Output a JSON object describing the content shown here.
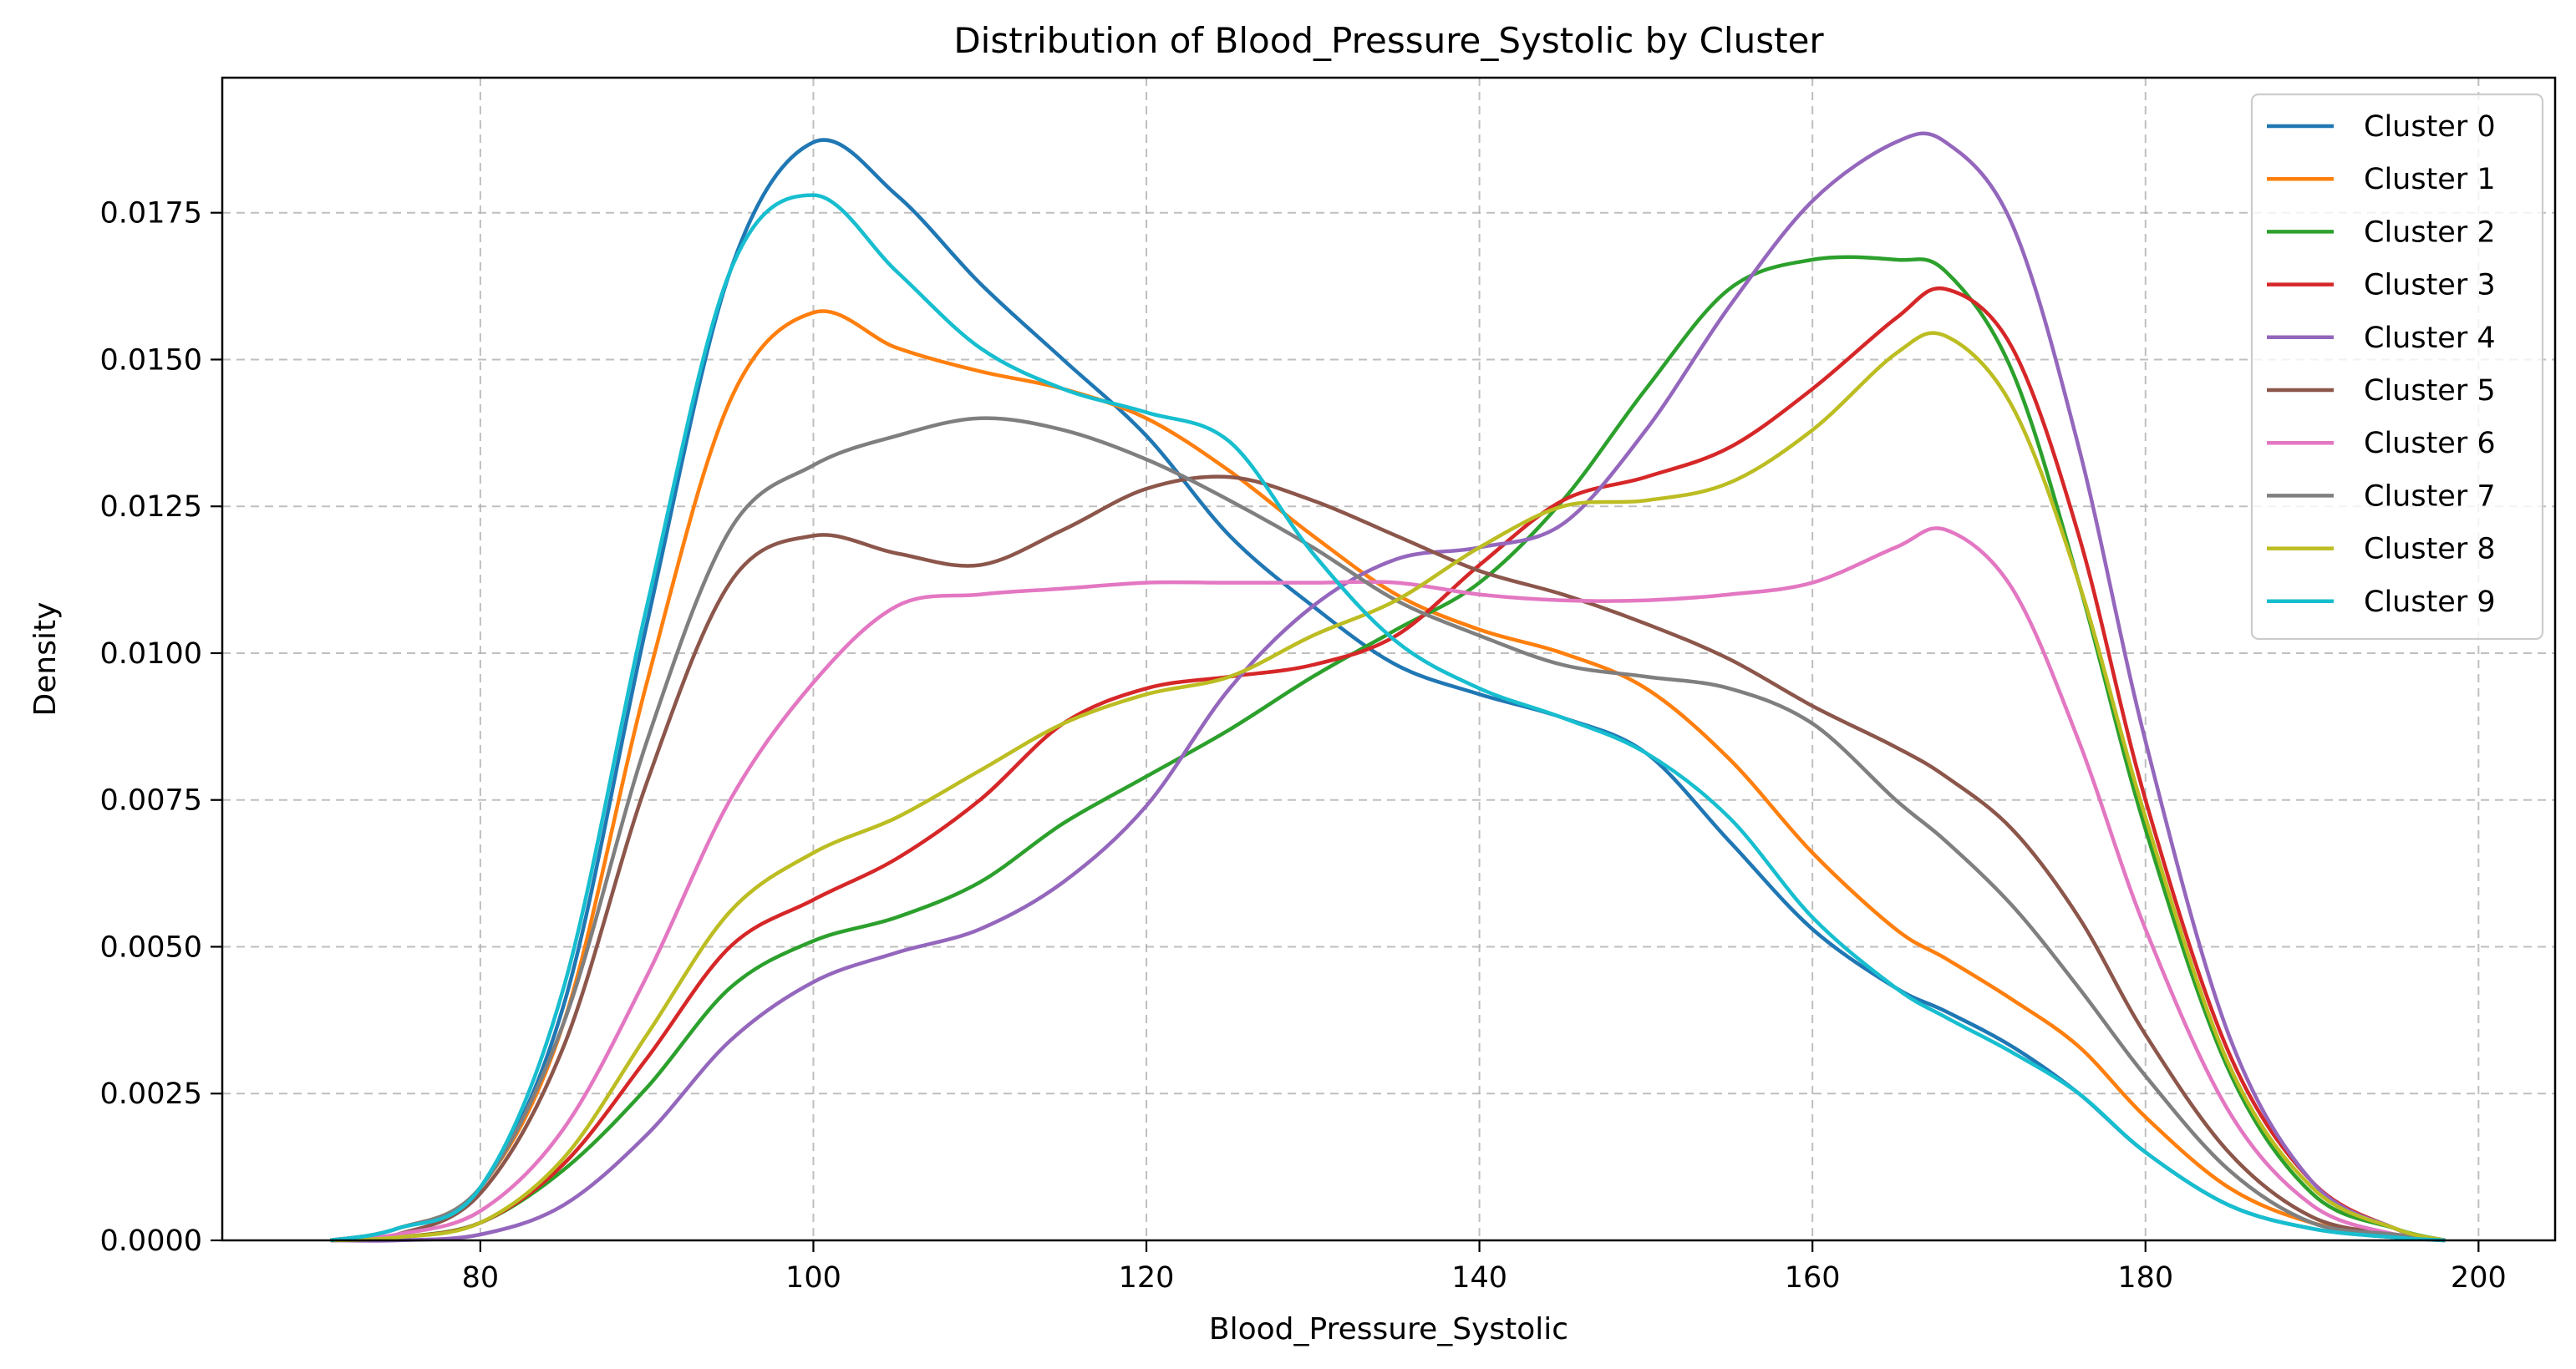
{
  "chart_data": {
    "type": "line",
    "title": "Distribution of Blood_Pressure_Systolic by Cluster",
    "xlabel": "Blood_Pressure_Systolic",
    "ylabel": "Density",
    "xlim": [
      64.5,
      204.6
    ],
    "ylim": [
      0,
      0.0198
    ],
    "xticks": [
      80,
      100,
      120,
      140,
      160,
      180,
      200
    ],
    "yticks": [
      0,
      0.0025,
      0.005,
      0.0075,
      0.01,
      0.0125,
      0.015,
      0.0175
    ],
    "xtick_labels": [
      "80",
      "100",
      "120",
      "140",
      "160",
      "180",
      "200"
    ],
    "ytick_labels": [
      "0.0000",
      "0.0025",
      "0.0050",
      "0.0075",
      "0.0100",
      "0.0125",
      "0.0150",
      "0.0175"
    ],
    "grid": true,
    "legend_position": "top-right",
    "x": [
      71,
      75,
      80,
      85,
      90,
      95,
      100,
      105,
      110,
      115,
      120,
      125,
      130,
      135,
      140,
      145,
      150,
      155,
      160,
      165,
      168,
      172,
      176,
      180,
      185,
      190,
      195,
      198
    ],
    "series": [
      {
        "name": "Cluster 0",
        "color": "#1f77b4",
        "values": [
          0,
          0.0002,
          0.0009,
          0.004,
          0.0105,
          0.0165,
          0.0187,
          0.0178,
          0.0163,
          0.015,
          0.0137,
          0.012,
          0.0108,
          0.0098,
          0.0093,
          0.0089,
          0.0083,
          0.0068,
          0.0053,
          0.0043,
          0.0039,
          0.0033,
          0.0025,
          0.0015,
          0.0006,
          0.0002,
          5e-05,
          0
        ]
      },
      {
        "name": "Cluster 1",
        "color": "#ff7f0e",
        "values": [
          0,
          0.0002,
          0.0009,
          0.0037,
          0.0095,
          0.0143,
          0.0158,
          0.0152,
          0.0148,
          0.0145,
          0.014,
          0.0131,
          0.012,
          0.011,
          0.0104,
          0.01,
          0.0094,
          0.0082,
          0.0066,
          0.0053,
          0.0048,
          0.0041,
          0.0033,
          0.0021,
          0.0009,
          0.0003,
          0.0001,
          0
        ]
      },
      {
        "name": "Cluster 2",
        "color": "#2ca02c",
        "values": [
          0,
          5e-05,
          0.0003,
          0.0012,
          0.0026,
          0.0043,
          0.0051,
          0.0055,
          0.0061,
          0.0071,
          0.0079,
          0.0087,
          0.0096,
          0.0104,
          0.0112,
          0.0126,
          0.0145,
          0.0162,
          0.0167,
          0.0167,
          0.0165,
          0.0148,
          0.0112,
          0.007,
          0.0029,
          0.0008,
          0.0002,
          0
        ]
      },
      {
        "name": "Cluster 3",
        "color": "#d62728",
        "values": [
          0,
          5e-05,
          0.0003,
          0.0013,
          0.0031,
          0.005,
          0.0058,
          0.0065,
          0.0075,
          0.0088,
          0.0094,
          0.0096,
          0.0098,
          0.0103,
          0.0115,
          0.0126,
          0.013,
          0.0135,
          0.0145,
          0.0157,
          0.0162,
          0.0152,
          0.012,
          0.0075,
          0.0032,
          0.001,
          0.0002,
          0
        ]
      },
      {
        "name": "Cluster 4",
        "color": "#9467bd",
        "values": [
          0,
          0,
          0.0001,
          0.0006,
          0.0018,
          0.0034,
          0.0044,
          0.0049,
          0.0053,
          0.0061,
          0.0074,
          0.0094,
          0.0108,
          0.0116,
          0.0118,
          0.0122,
          0.0138,
          0.0159,
          0.0177,
          0.0187,
          0.0187,
          0.0173,
          0.0135,
          0.0085,
          0.0035,
          0.001,
          0.0002,
          0
        ]
      },
      {
        "name": "Cluster 5",
        "color": "#8c564b",
        "values": [
          0,
          0.0001,
          0.0008,
          0.0033,
          0.0078,
          0.0112,
          0.012,
          0.0117,
          0.0115,
          0.0121,
          0.0128,
          0.013,
          0.0126,
          0.012,
          0.0114,
          0.011,
          0.0105,
          0.0099,
          0.0091,
          0.0084,
          0.0079,
          0.007,
          0.0055,
          0.0035,
          0.0015,
          0.0004,
          0.0001,
          0
        ]
      },
      {
        "name": "Cluster 6",
        "color": "#e377c2",
        "values": [
          0,
          0.0001,
          0.0005,
          0.0019,
          0.0045,
          0.0075,
          0.0095,
          0.0108,
          0.011,
          0.0111,
          0.0112,
          0.0112,
          0.0112,
          0.0112,
          0.011,
          0.0109,
          0.0109,
          0.011,
          0.0112,
          0.0118,
          0.0121,
          0.0111,
          0.0085,
          0.0053,
          0.0022,
          0.0006,
          0.0001,
          0
        ]
      },
      {
        "name": "Cluster 7",
        "color": "#7f7f7f",
        "values": [
          0,
          0.0002,
          0.0009,
          0.0037,
          0.0085,
          0.0121,
          0.0132,
          0.0137,
          0.014,
          0.0138,
          0.0133,
          0.0126,
          0.0118,
          0.0109,
          0.0103,
          0.0098,
          0.0096,
          0.0094,
          0.0088,
          0.0075,
          0.0068,
          0.0057,
          0.0043,
          0.0028,
          0.0012,
          0.0003,
          0.0001,
          0
        ]
      },
      {
        "name": "Cluster 8",
        "color": "#bcbd22",
        "values": [
          0,
          5e-05,
          0.0003,
          0.0014,
          0.0035,
          0.0056,
          0.0066,
          0.0072,
          0.008,
          0.0088,
          0.0093,
          0.0096,
          0.0103,
          0.0109,
          0.0118,
          0.0125,
          0.0126,
          0.0129,
          0.0138,
          0.0151,
          0.0154,
          0.0142,
          0.0112,
          0.0072,
          0.003,
          0.0009,
          0.0002,
          0
        ]
      },
      {
        "name": "Cluster 9",
        "color": "#17becf",
        "values": [
          0,
          0.0002,
          0.0009,
          0.0043,
          0.0108,
          0.0165,
          0.0178,
          0.0165,
          0.0152,
          0.0145,
          0.0141,
          0.0136,
          0.0117,
          0.0102,
          0.0094,
          0.0089,
          0.0083,
          0.0072,
          0.0055,
          0.0043,
          0.0038,
          0.0032,
          0.0025,
          0.0015,
          0.0006,
          0.0002,
          5e-05,
          0
        ]
      }
    ]
  }
}
